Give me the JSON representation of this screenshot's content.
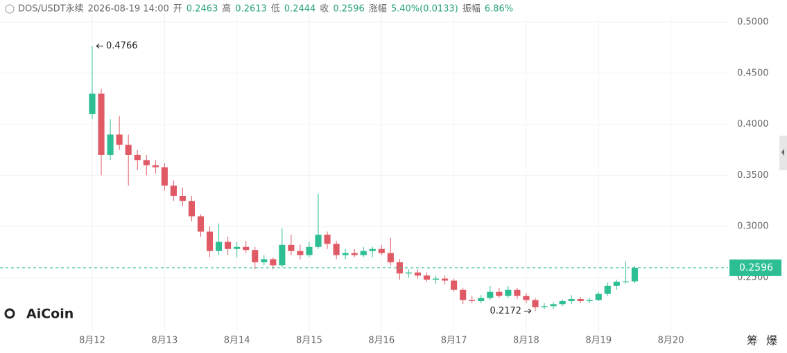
{
  "chart_data": {
    "type": "candlestick",
    "symbol": "DOS/USDT永续",
    "time": "2026-08-19 14:00",
    "header_labels": [
      "开",
      "高",
      "低",
      "收",
      "涨幅",
      "振幅"
    ],
    "change": "5.40%(0.0133)",
    "amplitude": "6.86%",
    "brand": "AiCoin",
    "buttons": [
      "筹",
      "爆"
    ],
    "up_color": "#2dbf93",
    "down_color": "#e05a66",
    "last_price": 0.2596,
    "max_label": 0.4766,
    "min_label": 0.2172,
    "xlim": [
      -1.275,
      8.79
    ],
    "xticks": [
      {
        "value": 0,
        "label": "8月12"
      },
      {
        "value": 1,
        "label": "8月13"
      },
      {
        "value": 2,
        "label": "8月14"
      },
      {
        "value": 3,
        "label": "8月15"
      },
      {
        "value": 4,
        "label": "8月16"
      },
      {
        "value": 5,
        "label": "8月17"
      },
      {
        "value": 6,
        "label": "8月18"
      },
      {
        "value": 7,
        "label": "8月19"
      },
      {
        "value": 8,
        "label": "8月20"
      }
    ],
    "ylim": [
      0.1965,
      0.5217
    ],
    "yticks": [
      {
        "value": 0.25,
        "label": "0.2500"
      },
      {
        "value": 0.3,
        "label": "0.3000"
      },
      {
        "value": 0.35,
        "label": "0.3500"
      },
      {
        "value": 0.4,
        "label": "0.4000"
      },
      {
        "value": 0.45,
        "label": "0.4500"
      },
      {
        "value": 0.5,
        "label": "0.5000"
      }
    ],
    "x": [
      0,
      0.125,
      0.25,
      0.375,
      0.5,
      0.625,
      0.75,
      0.875,
      1,
      1.125,
      1.25,
      1.375,
      1.5,
      1.625,
      1.75,
      1.875,
      2,
      2.125,
      2.25,
      2.375,
      2.5,
      2.625,
      2.75,
      2.875,
      3,
      3.125,
      3.25,
      3.375,
      3.5,
      3.625,
      3.75,
      3.875,
      4,
      4.125,
      4.25,
      4.375,
      4.5,
      4.625,
      4.75,
      4.875,
      5,
      5.125,
      5.25,
      5.375,
      5.5,
      5.625,
      5.75,
      5.875,
      6,
      6.125,
      6.25,
      6.375,
      6.5,
      6.625,
      6.75,
      6.875,
      7,
      7.125,
      7.25,
      7.375,
      7.5
    ],
    "open": [
      0.41,
      0.43,
      0.37,
      0.39,
      0.38,
      0.37,
      0.365,
      0.36,
      0.358,
      0.34,
      0.33,
      0.325,
      0.31,
      0.295,
      0.276,
      0.285,
      0.278,
      0.28,
      0.277,
      0.265,
      0.268,
      0.262,
      0.282,
      0.276,
      0.272,
      0.28,
      0.292,
      0.283,
      0.272,
      0.274,
      0.272,
      0.276,
      0.278,
      0.274,
      0.265,
      0.254,
      0.255,
      0.252,
      0.248,
      0.249,
      0.247,
      0.238,
      0.228,
      0.227,
      0.23,
      0.236,
      0.232,
      0.238,
      0.232,
      0.228,
      0.221,
      0.222,
      0.224,
      0.227,
      0.229,
      0.227,
      0.228,
      0.234,
      0.242,
      0.246,
      0.2463
    ],
    "high": [
      0.4766,
      0.435,
      0.405,
      0.408,
      0.39,
      0.375,
      0.37,
      0.365,
      0.362,
      0.345,
      0.338,
      0.33,
      0.312,
      0.3,
      0.303,
      0.29,
      0.285,
      0.286,
      0.28,
      0.272,
      0.27,
      0.298,
      0.292,
      0.282,
      0.285,
      0.332,
      0.295,
      0.286,
      0.278,
      0.278,
      0.28,
      0.28,
      0.282,
      0.289,
      0.268,
      0.258,
      0.258,
      0.255,
      0.252,
      0.252,
      0.249,
      0.24,
      0.232,
      0.233,
      0.242,
      0.24,
      0.242,
      0.24,
      0.235,
      0.23,
      0.225,
      0.226,
      0.229,
      0.233,
      0.231,
      0.23,
      0.236,
      0.245,
      0.248,
      0.266,
      0.2613
    ],
    "low": [
      0.405,
      0.35,
      0.365,
      0.375,
      0.34,
      0.355,
      0.35,
      0.352,
      0.335,
      0.325,
      0.32,
      0.305,
      0.29,
      0.27,
      0.272,
      0.272,
      0.27,
      0.274,
      0.258,
      0.262,
      0.258,
      0.26,
      0.272,
      0.268,
      0.27,
      0.278,
      0.278,
      0.268,
      0.268,
      0.27,
      0.27,
      0.27,
      0.272,
      0.262,
      0.248,
      0.25,
      0.249,
      0.246,
      0.244,
      0.243,
      0.236,
      0.224,
      0.225,
      0.225,
      0.228,
      0.23,
      0.23,
      0.229,
      0.225,
      0.2172,
      0.219,
      0.219,
      0.222,
      0.224,
      0.225,
      0.225,
      0.227,
      0.232,
      0.238,
      0.244,
      0.2444
    ],
    "close": [
      0.43,
      0.37,
      0.39,
      0.38,
      0.37,
      0.365,
      0.36,
      0.358,
      0.34,
      0.33,
      0.325,
      0.31,
      0.295,
      0.276,
      0.285,
      0.278,
      0.28,
      0.277,
      0.265,
      0.268,
      0.262,
      0.282,
      0.276,
      0.272,
      0.28,
      0.292,
      0.283,
      0.272,
      0.274,
      0.272,
      0.276,
      0.278,
      0.274,
      0.265,
      0.254,
      0.255,
      0.252,
      0.248,
      0.249,
      0.247,
      0.238,
      0.228,
      0.227,
      0.23,
      0.236,
      0.232,
      0.238,
      0.232,
      0.228,
      0.221,
      0.222,
      0.224,
      0.227,
      0.229,
      0.227,
      0.228,
      0.234,
      0.242,
      0.246,
      0.2463,
      0.2596
    ]
  }
}
